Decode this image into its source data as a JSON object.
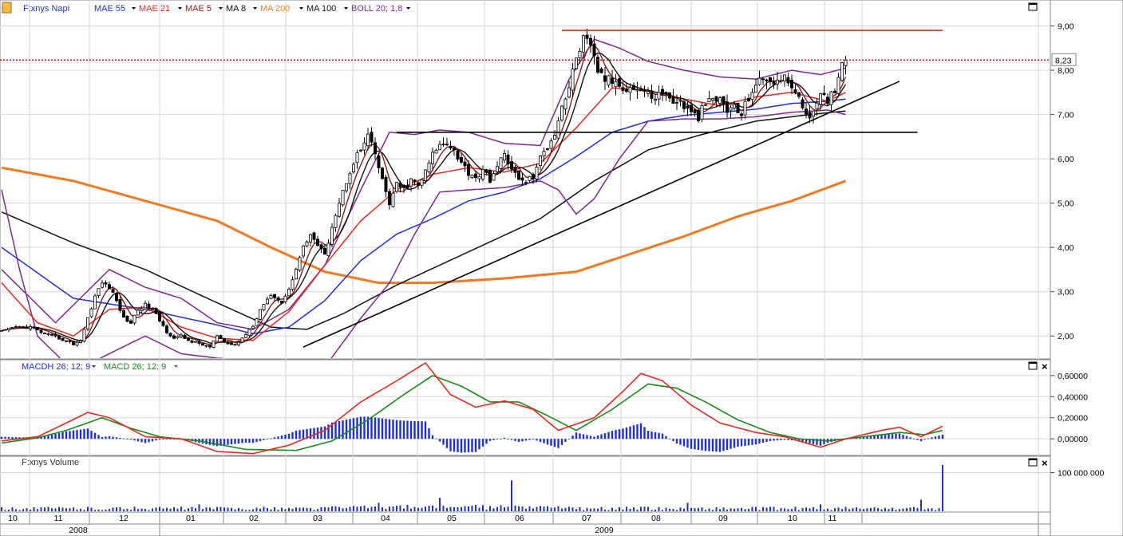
{
  "toolbar": {
    "series_name": "F:xnys Napi",
    "indicators": [
      {
        "label": "MAE 55",
        "color": "#1f2fd6"
      },
      {
        "label": "MAE 21",
        "color": "#e8281e"
      },
      {
        "label": "MAE 5",
        "color": "#8b1a1a"
      },
      {
        "label": "MA 8",
        "color": "#111111"
      },
      {
        "label": "MA 200",
        "color": "#f07a22"
      },
      {
        "label": "MA 100",
        "color": "#111111"
      },
      {
        "label": "BOLL 20; 1,8",
        "color": "#7a2a8c"
      }
    ]
  },
  "macd_panel": {
    "indicators": [
      {
        "label": "MACDH 26; 12; 9",
        "color": "#1f2fd6"
      },
      {
        "label": "MACD 26; 12; 9",
        "color": "#1a8a1a"
      }
    ]
  },
  "volume_panel": {
    "label": "F:xnys Volume"
  },
  "colors": {
    "grid": "#d6d6d6",
    "up_candle": "#ffffff",
    "candle": "#000000",
    "mae55": "#1f2fd6",
    "mae21": "#e8281e",
    "mae5": "#8b1a1a",
    "ma8": "#111111",
    "ma200": "#f07a22",
    "ma100": "#111111",
    "boll": "#7a2a8c",
    "resistance": "#e8281e",
    "histogram": "#1f2fd6",
    "macd": "#e8281e",
    "signal": "#1a8a1a",
    "volume": "#1f2fd6",
    "last_price_line": "#c0181a"
  },
  "chart_data": [
    {
      "type": "candlestick",
      "panel": "price",
      "title": "F:xnys Napi",
      "last_price_label": "8,23",
      "last_price": 8.23,
      "ylim": [
        1.5,
        9.55
      ],
      "y_ticks": [
        2,
        3,
        4,
        5,
        6,
        7,
        8,
        9
      ],
      "y_tick_labels": [
        "2,00",
        "3,00",
        "4,00",
        "5,00",
        "6,00",
        "7,00",
        "8,00",
        "9,00"
      ],
      "x_month_labels": [
        "10",
        "11",
        "12",
        "01",
        "02",
        "03",
        "04",
        "05",
        "06",
        "07",
        "08",
        "09",
        "10",
        "11"
      ],
      "x_year_labels": [
        "2008",
        "2009"
      ],
      "close_keypoints": [
        [
          0,
          2.1
        ],
        [
          4,
          2.2
        ],
        [
          8,
          2.2
        ],
        [
          12,
          2.05
        ],
        [
          16,
          1.95
        ],
        [
          20,
          1.82
        ],
        [
          22,
          1.9
        ],
        [
          24,
          2.4
        ],
        [
          26,
          2.9
        ],
        [
          28,
          3.2
        ],
        [
          30,
          3.1
        ],
        [
          32,
          2.8
        ],
        [
          34,
          2.4
        ],
        [
          36,
          2.3
        ],
        [
          38,
          2.6
        ],
        [
          40,
          2.7
        ],
        [
          42,
          2.6
        ],
        [
          44,
          2.35
        ],
        [
          46,
          2.1
        ],
        [
          48,
          1.95
        ],
        [
          50,
          2.0
        ],
        [
          52,
          1.9
        ],
        [
          54,
          1.85
        ],
        [
          56,
          1.8
        ],
        [
          58,
          1.75
        ],
        [
          60,
          2.0
        ],
        [
          62,
          1.85
        ],
        [
          64,
          1.8
        ],
        [
          66,
          1.85
        ],
        [
          68,
          2.05
        ],
        [
          70,
          2.25
        ],
        [
          72,
          2.6
        ],
        [
          74,
          2.85
        ],
        [
          76,
          2.9
        ],
        [
          78,
          2.75
        ],
        [
          80,
          3.05
        ],
        [
          82,
          3.55
        ],
        [
          84,
          4.0
        ],
        [
          86,
          4.3
        ],
        [
          88,
          4.05
        ],
        [
          90,
          3.8
        ],
        [
          92,
          4.5
        ],
        [
          94,
          5.0
        ],
        [
          96,
          5.5
        ],
        [
          98,
          5.95
        ],
        [
          100,
          6.2
        ],
        [
          102,
          6.5
        ],
        [
          104,
          6.1
        ],
        [
          106,
          5.5
        ],
        [
          108,
          5.0
        ],
        [
          110,
          5.4
        ],
        [
          112,
          5.3
        ],
        [
          114,
          5.5
        ],
        [
          116,
          5.4
        ],
        [
          118,
          5.7
        ],
        [
          120,
          6.1
        ],
        [
          122,
          6.3
        ],
        [
          124,
          6.4
        ],
        [
          126,
          6.2
        ],
        [
          128,
          5.9
        ],
        [
          130,
          5.7
        ],
        [
          132,
          5.6
        ],
        [
          134,
          5.7
        ],
        [
          136,
          5.55
        ],
        [
          138,
          5.8
        ],
        [
          140,
          6.1
        ],
        [
          142,
          5.8
        ],
        [
          144,
          5.5
        ],
        [
          146,
          5.5
        ],
        [
          148,
          5.6
        ],
        [
          150,
          6.0
        ],
        [
          152,
          6.3
        ],
        [
          154,
          6.6
        ],
        [
          156,
          7.2
        ],
        [
          158,
          7.6
        ],
        [
          160,
          8.3
        ],
        [
          162,
          8.7
        ],
        [
          164,
          8.5
        ],
        [
          166,
          8.0
        ],
        [
          168,
          7.8
        ],
        [
          170,
          7.75
        ],
        [
          172,
          7.7
        ],
        [
          174,
          7.6
        ],
        [
          176,
          7.6
        ],
        [
          178,
          7.55
        ],
        [
          180,
          7.45
        ],
        [
          182,
          7.4
        ],
        [
          184,
          7.5
        ],
        [
          186,
          7.35
        ],
        [
          188,
          7.3
        ],
        [
          190,
          7.2
        ],
        [
          192,
          7.0
        ],
        [
          194,
          6.95
        ],
        [
          196,
          7.25
        ],
        [
          198,
          7.3
        ],
        [
          200,
          7.35
        ],
        [
          202,
          7.1
        ],
        [
          204,
          7.15
        ],
        [
          206,
          7.0
        ],
        [
          208,
          7.4
        ],
        [
          210,
          7.7
        ],
        [
          212,
          7.75
        ],
        [
          214,
          7.8
        ],
        [
          216,
          7.75
        ],
        [
          218,
          7.8
        ],
        [
          220,
          7.7
        ],
        [
          222,
          7.3
        ],
        [
          224,
          7.05
        ],
        [
          226,
          7.0
        ],
        [
          228,
          7.4
        ],
        [
          230,
          7.3
        ],
        [
          232,
          7.6
        ],
        [
          234,
          8.2
        ],
        [
          235,
          8.23
        ]
      ],
      "mae55_keypoints": [
        [
          0,
          4.0
        ],
        [
          20,
          2.85
        ],
        [
          40,
          2.6
        ],
        [
          60,
          2.25
        ],
        [
          70,
          2.05
        ],
        [
          80,
          2.2
        ],
        [
          90,
          2.8
        ],
        [
          100,
          3.7
        ],
        [
          110,
          4.3
        ],
        [
          120,
          4.65
        ],
        [
          130,
          5.05
        ],
        [
          140,
          5.25
        ],
        [
          150,
          5.55
        ],
        [
          160,
          6.05
        ],
        [
          170,
          6.6
        ],
        [
          180,
          6.85
        ],
        [
          190,
          6.98
        ],
        [
          200,
          7.05
        ],
        [
          210,
          7.12
        ],
        [
          220,
          7.25
        ],
        [
          230,
          7.3
        ],
        [
          235,
          7.35
        ]
      ],
      "mae21_keypoints": [
        [
          0,
          3.2
        ],
        [
          10,
          2.3
        ],
        [
          20,
          2.0
        ],
        [
          30,
          2.6
        ],
        [
          40,
          2.65
        ],
        [
          50,
          2.2
        ],
        [
          60,
          1.95
        ],
        [
          70,
          1.9
        ],
        [
          80,
          2.55
        ],
        [
          90,
          3.6
        ],
        [
          100,
          4.6
        ],
        [
          110,
          5.3
        ],
        [
          120,
          5.65
        ],
        [
          130,
          5.8
        ],
        [
          140,
          5.7
        ],
        [
          150,
          5.9
        ],
        [
          160,
          6.7
        ],
        [
          170,
          7.6
        ],
        [
          180,
          7.55
        ],
        [
          190,
          7.35
        ],
        [
          200,
          7.2
        ],
        [
          210,
          7.4
        ],
        [
          220,
          7.5
        ],
        [
          230,
          7.3
        ],
        [
          235,
          7.5
        ]
      ],
      "ma100_keypoints": [
        [
          0,
          4.8
        ],
        [
          20,
          4.1
        ],
        [
          40,
          3.5
        ],
        [
          60,
          2.75
        ],
        [
          75,
          2.2
        ],
        [
          85,
          2.15
        ],
        [
          95,
          2.5
        ],
        [
          110,
          3.15
        ],
        [
          130,
          3.9
        ],
        [
          150,
          4.65
        ],
        [
          165,
          5.5
        ],
        [
          180,
          6.2
        ],
        [
          195,
          6.55
        ],
        [
          210,
          6.85
        ],
        [
          225,
          7.0
        ],
        [
          235,
          7.08
        ]
      ],
      "ma200_keypoints": [
        [
          0,
          5.8
        ],
        [
          20,
          5.5
        ],
        [
          40,
          5.05
        ],
        [
          60,
          4.6
        ],
        [
          75,
          4.0
        ],
        [
          90,
          3.45
        ],
        [
          105,
          3.2
        ],
        [
          120,
          3.2
        ],
        [
          140,
          3.3
        ],
        [
          160,
          3.45
        ],
        [
          175,
          3.85
        ],
        [
          190,
          4.25
        ],
        [
          205,
          4.7
        ],
        [
          220,
          5.05
        ],
        [
          235,
          5.5
        ]
      ],
      "boll_upper_keypoints": [
        [
          0,
          3.5
        ],
        [
          15,
          2.3
        ],
        [
          30,
          3.5
        ],
        [
          40,
          3.1
        ],
        [
          50,
          2.85
        ],
        [
          60,
          2.3
        ],
        [
          70,
          2.15
        ],
        [
          80,
          2.6
        ],
        [
          90,
          3.6
        ],
        [
          100,
          5.3
        ],
        [
          108,
          6.6
        ],
        [
          115,
          6.55
        ],
        [
          122,
          6.65
        ],
        [
          130,
          6.6
        ],
        [
          140,
          6.35
        ],
        [
          150,
          6.3
        ],
        [
          158,
          7.8
        ],
        [
          165,
          8.7
        ],
        [
          172,
          8.5
        ],
        [
          180,
          8.2
        ],
        [
          190,
          8.0
        ],
        [
          200,
          7.85
        ],
        [
          210,
          7.8
        ],
        [
          220,
          8.0
        ],
        [
          228,
          7.9
        ],
        [
          235,
          8.05
        ]
      ],
      "boll_lower_keypoints": [
        [
          0,
          5.3
        ],
        [
          5,
          3.5
        ],
        [
          10,
          2.0
        ],
        [
          20,
          1.2
        ],
        [
          30,
          1.6
        ],
        [
          40,
          2.0
        ],
        [
          50,
          1.6
        ],
        [
          60,
          1.5
        ],
        [
          70,
          1.45
        ],
        [
          80,
          1.4
        ],
        [
          90,
          1.3
        ],
        [
          100,
          2.4
        ],
        [
          108,
          3.2
        ],
        [
          115,
          4.3
        ],
        [
          122,
          5.25
        ],
        [
          130,
          5.3
        ],
        [
          140,
          5.35
        ],
        [
          150,
          5.5
        ],
        [
          155,
          5.3
        ],
        [
          160,
          4.75
        ],
        [
          165,
          5.1
        ],
        [
          172,
          6.0
        ],
        [
          180,
          6.85
        ],
        [
          190,
          6.9
        ],
        [
          200,
          6.9
        ],
        [
          210,
          6.95
        ],
        [
          220,
          7.05
        ],
        [
          230,
          7.1
        ],
        [
          235,
          7.0
        ]
      ],
      "trendlines": [
        {
          "from": [
            84,
            1.75
          ],
          "to": [
            250,
            7.75
          ]
        },
        {
          "from": [
            110,
            6.6
          ],
          "to": [
            255,
            6.6
          ]
        },
        {
          "from": [
            156,
            8.9
          ],
          "to": [
            262,
            8.9
          ]
        }
      ]
    },
    {
      "type": "macd",
      "panel": "macd",
      "ylim": [
        -0.15,
        0.72
      ],
      "y_ticks": [
        0,
        0.2,
        0.4,
        0.6
      ],
      "y_tick_labels": [
        "0,00000",
        "0,20000",
        "0,40000",
        "0,60000"
      ],
      "macd_keypoints": [
        [
          0,
          -0.02
        ],
        [
          10,
          0.02
        ],
        [
          18,
          0.15
        ],
        [
          24,
          0.25
        ],
        [
          30,
          0.2
        ],
        [
          40,
          0.02
        ],
        [
          50,
          0.0
        ],
        [
          60,
          -0.12
        ],
        [
          70,
          -0.14
        ],
        [
          80,
          -0.06
        ],
        [
          90,
          0.08
        ],
        [
          100,
          0.35
        ],
        [
          110,
          0.55
        ],
        [
          118,
          0.72
        ],
        [
          125,
          0.42
        ],
        [
          132,
          0.3
        ],
        [
          140,
          0.36
        ],
        [
          148,
          0.28
        ],
        [
          155,
          0.08
        ],
        [
          165,
          0.2
        ],
        [
          173,
          0.45
        ],
        [
          178,
          0.62
        ],
        [
          184,
          0.55
        ],
        [
          192,
          0.32
        ],
        [
          200,
          0.15
        ],
        [
          210,
          0.06
        ],
        [
          218,
          0.02
        ],
        [
          228,
          -0.08
        ],
        [
          235,
          0.0
        ],
        [
          245,
          0.08
        ],
        [
          250,
          0.11
        ],
        [
          256,
          0.02
        ],
        [
          262,
          0.12
        ]
      ],
      "signal_keypoints": [
        [
          0,
          -0.04
        ],
        [
          10,
          0.01
        ],
        [
          18,
          0.08
        ],
        [
          28,
          0.2
        ],
        [
          36,
          0.1
        ],
        [
          44,
          0.02
        ],
        [
          55,
          -0.02
        ],
        [
          68,
          -0.1
        ],
        [
          82,
          -0.11
        ],
        [
          92,
          -0.02
        ],
        [
          102,
          0.18
        ],
        [
          112,
          0.42
        ],
        [
          120,
          0.6
        ],
        [
          128,
          0.5
        ],
        [
          136,
          0.35
        ],
        [
          144,
          0.35
        ],
        [
          152,
          0.22
        ],
        [
          160,
          0.08
        ],
        [
          170,
          0.28
        ],
        [
          180,
          0.52
        ],
        [
          188,
          0.48
        ],
        [
          196,
          0.35
        ],
        [
          205,
          0.18
        ],
        [
          214,
          0.06
        ],
        [
          222,
          0.0
        ],
        [
          230,
          -0.02
        ],
        [
          240,
          0.02
        ],
        [
          250,
          0.06
        ],
        [
          257,
          0.04
        ],
        [
          262,
          0.08
        ]
      ]
    },
    {
      "type": "bar",
      "panel": "volume",
      "ylim": [
        0,
        130000000
      ],
      "y_ticks": [
        100000000
      ],
      "y_tick_labels": [
        "100 000 000"
      ],
      "volume_spikes": [
        [
          55,
          18000000
        ],
        [
          105,
          22000000
        ],
        [
          122,
          35000000
        ],
        [
          142,
          80000000
        ],
        [
          191,
          22000000
        ],
        [
          228,
          18000000
        ],
        [
          256,
          30000000
        ],
        [
          262,
          120000000
        ]
      ]
    }
  ]
}
